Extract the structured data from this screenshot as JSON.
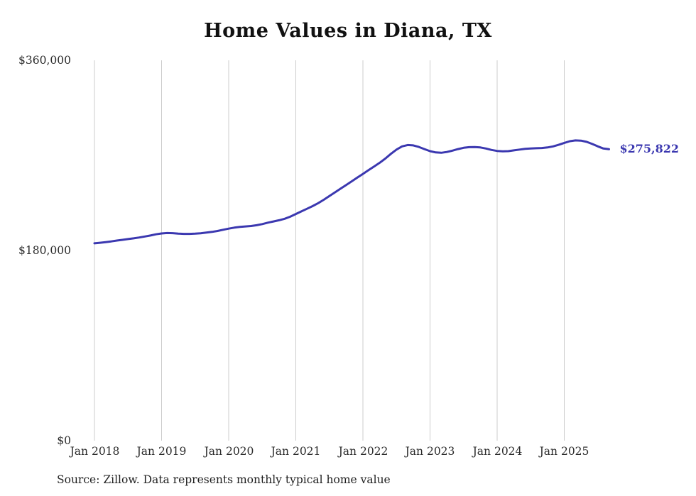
{
  "title": "Home Values in Diana, TX",
  "source_note": "Source: Zillow. Data represents monthly typical home value",
  "end_label": "$275,822",
  "colors": {
    "line": "#3b38b0",
    "end_label": "#3b38b0",
    "grid": "#cccccc",
    "text": "#2b2b2b",
    "title": "#111111"
  },
  "y_axis": {
    "labels": [
      "$360,000",
      "$180,000",
      "$0"
    ]
  },
  "x_axis": {
    "labels": [
      "Jan 2018",
      "Jan 2019",
      "Jan 2020",
      "Jan 2021",
      "Jan 2022",
      "Jan 2023",
      "Jan 2024",
      "Jan 2025"
    ]
  },
  "chart_data": {
    "type": "line",
    "title": "Home Values in Diana, TX",
    "xlabel": "",
    "ylabel": "",
    "ylim": [
      0,
      360000
    ],
    "y_tick_labels": [
      "$0",
      "$180,000",
      "$360,000"
    ],
    "x_tick_labels": [
      "Jan 2018",
      "Jan 2019",
      "Jan 2020",
      "Jan 2021",
      "Jan 2022",
      "Jan 2023",
      "Jan 2024",
      "Jan 2025"
    ],
    "grid": "vertical",
    "legend": "none",
    "x_start_month": "Jan 2018",
    "x_interval": "monthly",
    "last_value": 275822,
    "last_value_label": "$275,822",
    "series": [
      {
        "name": "Typical home value",
        "monthly_values": [
          186800,
          187300,
          187900,
          188600,
          189400,
          190100,
          190800,
          191500,
          192300,
          193200,
          194200,
          195300,
          196100,
          196500,
          196400,
          196000,
          195700,
          195700,
          195900,
          196300,
          196900,
          197600,
          198500,
          199600,
          200700,
          201600,
          202300,
          202800,
          203200,
          203900,
          205000,
          206300,
          207500,
          208600,
          210000,
          212000,
          214500,
          217000,
          219500,
          222000,
          224800,
          228000,
          231500,
          235000,
          238500,
          242000,
          245500,
          249000,
          252500,
          256000,
          259500,
          263000,
          267000,
          271500,
          275500,
          278500,
          279800,
          279500,
          278000,
          276000,
          274000,
          272800,
          272500,
          273200,
          274500,
          276000,
          277200,
          277800,
          277900,
          277500,
          276500,
          275200,
          274200,
          273800,
          274000,
          274800,
          275500,
          276200,
          276500,
          276800,
          277000,
          277500,
          278500,
          280000,
          281800,
          283400,
          284200,
          284000,
          282800,
          280800,
          278500,
          276500,
          275822
        ]
      }
    ]
  }
}
